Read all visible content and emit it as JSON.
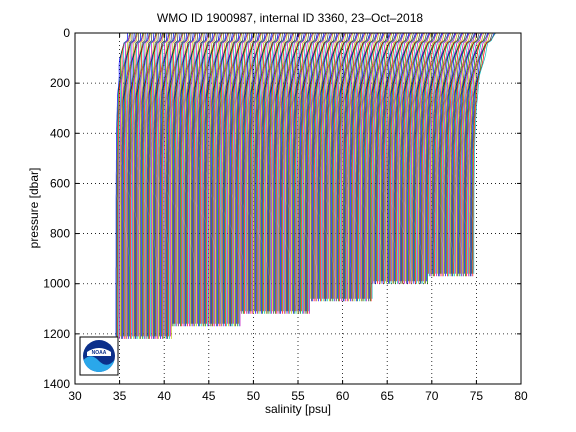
{
  "chart_data": {
    "type": "line",
    "title": "WMO ID 1900987, internal ID 3360, 23–Oct–2018",
    "xlabel": "salinity [psu]",
    "ylabel": "pressure [dbar]",
    "xlim": [
      30,
      80
    ],
    "ylim": [
      0,
      1400
    ],
    "y_reversed": true,
    "x_ticks": [
      30,
      35,
      40,
      45,
      50,
      55,
      60,
      65,
      70,
      75,
      80
    ],
    "y_ticks": [
      0,
      200,
      400,
      600,
      800,
      1000,
      1200,
      1400
    ],
    "grid": true,
    "series_note": "waterfall of successive profiles, each offset in salinity",
    "groups": [
      {
        "start": 34.6,
        "end": 40.8,
        "count": 62,
        "max_pressure": 1220
      },
      {
        "start": 40.9,
        "end": 48.5,
        "count": 76,
        "max_pressure": 1170
      },
      {
        "start": 48.6,
        "end": 56.3,
        "count": 77,
        "max_pressure": 1120
      },
      {
        "start": 56.4,
        "end": 63.3,
        "count": 69,
        "max_pressure": 1070
      },
      {
        "start": 63.4,
        "end": 69.5,
        "count": 61,
        "max_pressure": 1000
      },
      {
        "start": 69.6,
        "end": 74.7,
        "count": 51,
        "max_pressure": 970
      }
    ],
    "profile_colors": [
      "#0000ff",
      "#008000",
      "#ff0000",
      "#00bfbf",
      "#bf00bf",
      "#bfbf00",
      "#404040"
    ]
  },
  "logo": {
    "text": "NOAA"
  }
}
